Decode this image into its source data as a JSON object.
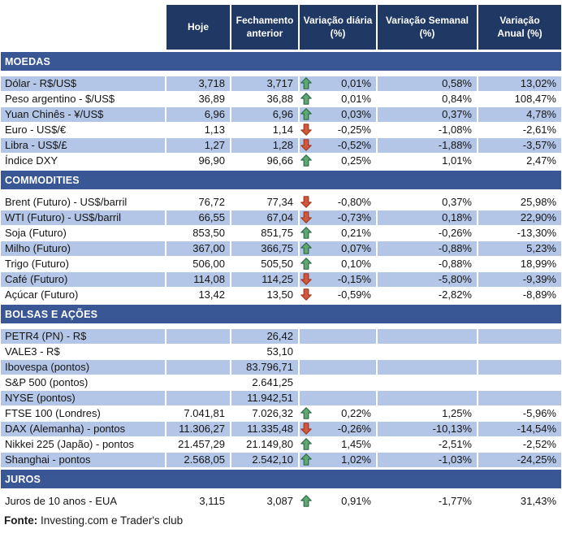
{
  "header": {
    "columns": [
      "Hoje",
      "Fechamento\nanterior",
      "Variação diária\n(%)",
      "Variação Semanal\n(%)",
      "Variação\nAnual (%)"
    ]
  },
  "sections": [
    {
      "title": "MOEDAS",
      "slug": "moedas",
      "rows": [
        {
          "label": "Dólar - R$/US$",
          "hoje": "3,718",
          "fechamento": "3,717",
          "arrow": "up",
          "diaria": "0,01%",
          "semanal": "0,58%",
          "anual": "13,02%",
          "shaded": true
        },
        {
          "label": "Peso argentino - $/US$",
          "hoje": "36,89",
          "fechamento": "36,88",
          "arrow": "up",
          "diaria": "0,01%",
          "semanal": "0,84%",
          "anual": "108,47%",
          "shaded": false
        },
        {
          "label": "Yuan Chinês - ¥/US$",
          "hoje": "6,96",
          "fechamento": "6,96",
          "arrow": "up",
          "diaria": "0,03%",
          "semanal": "0,37%",
          "anual": "4,78%",
          "shaded": true
        },
        {
          "label": "Euro - US$/€",
          "hoje": "1,13",
          "fechamento": "1,14",
          "arrow": "down",
          "diaria": "-0,25%",
          "semanal": "-1,08%",
          "anual": "-2,61%",
          "shaded": false
        },
        {
          "label": "Libra - US$/£",
          "hoje": "1,27",
          "fechamento": "1,28",
          "arrow": "down",
          "diaria": "-0,52%",
          "semanal": "-1,88%",
          "anual": "-3,57%",
          "shaded": true
        },
        {
          "label": "Índice DXY",
          "hoje": "96,90",
          "fechamento": "96,66",
          "arrow": "up",
          "diaria": "0,25%",
          "semanal": "1,01%",
          "anual": "2,47%",
          "shaded": false
        }
      ]
    },
    {
      "title": "COMMODITIES",
      "slug": "commodities",
      "rows": [
        {
          "label": "Brent (Futuro) - US$/barril",
          "hoje": "76,72",
          "fechamento": "77,34",
          "arrow": "down",
          "diaria": "-0,80%",
          "semanal": "0,37%",
          "anual": "25,98%",
          "shaded": false
        },
        {
          "label": "WTI (Futuro) - US$/barril",
          "hoje": "66,55",
          "fechamento": "67,04",
          "arrow": "down",
          "diaria": "-0,73%",
          "semanal": "0,18%",
          "anual": "22,90%",
          "shaded": true
        },
        {
          "label": "Soja (Futuro)",
          "hoje": "853,50",
          "fechamento": "851,75",
          "arrow": "up",
          "diaria": "0,21%",
          "semanal": "-0,26%",
          "anual": "-13,30%",
          "shaded": false
        },
        {
          "label": "Milho (Futuro)",
          "hoje": "367,00",
          "fechamento": "366,75",
          "arrow": "up",
          "diaria": "0,07%",
          "semanal": "-0,88%",
          "anual": "5,23%",
          "shaded": true
        },
        {
          "label": "Trigo (Futuro)",
          "hoje": "506,00",
          "fechamento": "505,50",
          "arrow": "up",
          "diaria": "0,10%",
          "semanal": "-0,88%",
          "anual": "18,99%",
          "shaded": false
        },
        {
          "label": "Café (Futuro)",
          "hoje": "114,08",
          "fechamento": "114,25",
          "arrow": "down",
          "diaria": "-0,15%",
          "semanal": "-5,80%",
          "anual": "-9,39%",
          "shaded": true
        },
        {
          "label": "Açúcar (Futuro)",
          "hoje": "13,42",
          "fechamento": "13,50",
          "arrow": "down",
          "diaria": "-0,59%",
          "semanal": "-2,82%",
          "anual": "-8,89%",
          "shaded": false
        }
      ]
    },
    {
      "title": "BOLSAS E AÇÕES",
      "slug": "bolsas-e-acoes",
      "rows": [
        {
          "label": "PETR4 (PN) - R$",
          "hoje": "",
          "fechamento": "26,42",
          "arrow": null,
          "diaria": "",
          "semanal": "",
          "anual": "",
          "shaded": true
        },
        {
          "label": "VALE3 - R$",
          "hoje": "",
          "fechamento": "53,10",
          "arrow": null,
          "diaria": "",
          "semanal": "",
          "anual": "",
          "shaded": false
        },
        {
          "label": "Ibovespa (pontos)",
          "hoje": "",
          "fechamento": "83.796,71",
          "arrow": null,
          "diaria": "",
          "semanal": "",
          "anual": "",
          "shaded": true
        },
        {
          "label": "S&P 500 (pontos)",
          "hoje": "",
          "fechamento": "2.641,25",
          "arrow": null,
          "diaria": "",
          "semanal": "",
          "anual": "",
          "shaded": false
        },
        {
          "label": "NYSE (pontos)",
          "hoje": "",
          "fechamento": "11.942,51",
          "arrow": null,
          "diaria": "",
          "semanal": "",
          "anual": "",
          "shaded": true
        },
        {
          "label": "FTSE 100 (Londres)",
          "hoje": "7.041,81",
          "fechamento": "7.026,32",
          "arrow": "up",
          "diaria": "0,22%",
          "semanal": "1,25%",
          "anual": "-5,96%",
          "shaded": false
        },
        {
          "label": "DAX (Alemanha) - pontos",
          "hoje": "11.306,27",
          "fechamento": "11.335,48",
          "arrow": "down",
          "diaria": "-0,26%",
          "semanal": "-10,13%",
          "anual": "-14,54%",
          "shaded": true
        },
        {
          "label": "Nikkei 225 (Japão) - pontos",
          "hoje": "21.457,29",
          "fechamento": "21.149,80",
          "arrow": "up",
          "diaria": "1,45%",
          "semanal": "-2,51%",
          "anual": "-2,52%",
          "shaded": false
        },
        {
          "label": "Shanghai - pontos",
          "hoje": "2.568,05",
          "fechamento": "2.542,10",
          "arrow": "up",
          "diaria": "1,02%",
          "semanal": "-1,03%",
          "anual": "-24,25%",
          "shaded": true
        }
      ]
    },
    {
      "title": "JUROS",
      "slug": "juros",
      "rows": [
        {
          "label": "Juros de 10 anos - EUA",
          "hoje": "3,115",
          "fechamento": "3,087",
          "arrow": "up",
          "diaria": "0,91%",
          "semanal": "-1,77%",
          "anual": "31,43%",
          "shaded": false
        }
      ]
    }
  ],
  "footer": {
    "label": "Fonte:",
    "text": " Investing.com e Trader's club"
  },
  "colors": {
    "header_bg": "#1F3864",
    "band_bg": "#3A5795",
    "row_shade": "#B4C6E7",
    "up_arrow_fill": "#5FA874",
    "up_arrow_stroke": "#2E6B49",
    "down_arrow_fill": "#D2573C",
    "down_arrow_stroke": "#A03A24"
  }
}
